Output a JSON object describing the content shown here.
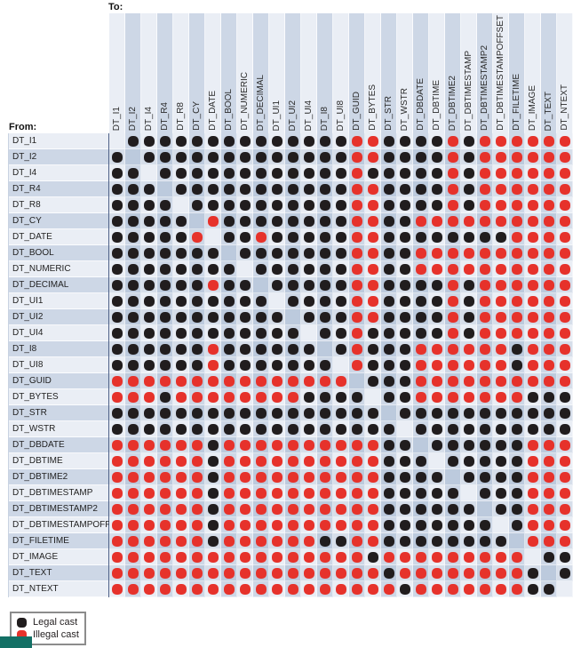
{
  "chart_data": {
    "type": "heatmap",
    "title": "",
    "x_axis_label": "To:",
    "y_axis_label": "From:",
    "columns": [
      "DT_I1",
      "DT_I2",
      "DT_I4",
      "DT_R4",
      "DT_R8",
      "DT_CY",
      "DT_DATE",
      "DT_BOOL",
      "DT_NUMERIC",
      "DT_DECIMAL",
      "DT_UI1",
      "DT_UI2",
      "DT_UI4",
      "DT_I8",
      "DT_UI8",
      "DT_GUID",
      "DT_BYTES",
      "DT_STR",
      "DT_WSTR",
      "DT_DBDATE",
      "DT_DBTIME",
      "DT_DBTIME2",
      "DT_DBTIMESTAMP",
      "DT_DBTIMESTAMP2",
      "DT_DBTIMESTAMPOFFSET",
      "DT_FILETIME",
      "DT_IMAGE",
      "DT_TEXT",
      "DT_NTEXT"
    ],
    "rows": [
      "DT_I1",
      "DT_I2",
      "DT_I4",
      "DT_R4",
      "DT_R8",
      "DT_CY",
      "DT_DATE",
      "DT_BOOL",
      "DT_NUMERIC",
      "DT_DECIMAL",
      "DT_UI1",
      "DT_UI2",
      "DT_UI4",
      "DT_I8",
      "DT_UI8",
      "DT_GUID",
      "DT_BYTES",
      "DT_STR",
      "DT_WSTR",
      "DT_DBDATE",
      "DT_DBTIME",
      "DT_DBTIME2",
      "DT_DBTIMESTAMP",
      "DT_DBTIMESTAMP2",
      "DT_DBTIMESTAMPOFFSET",
      "DT_FILETIME",
      "DT_IMAGE",
      "DT_TEXT",
      "DT_NTEXT"
    ],
    "cell_encoding": {
      "B": "legal cast (black dot)",
      "R": "illegal cast (red dot)",
      "D": "self cast diagonal (no dot)"
    },
    "values": [
      "DBBBBBBBBBBBBBBRRBBBBRBRRRRRR",
      "BDBBBBBBBBBBBBBRRBBBBRBRRRRRR",
      "BBDBBBBBBBBBBBBRBBBBBRBRRRRRR",
      "BBBDBBBBBBBBBBBRRBBBBRBRRRRRR",
      "BBBBDBBBBBBBBBBRRBBBBRBRRRRRR",
      "BBBBBDRBBBBBBBBRRBBRRRRRRRRRR",
      "BBBBBRDBBRBBBBBRRBBBBBBBBRRRR",
      "BBBBBBBDBBBBBBBRRBBRRRRRRRRRR",
      "BBBBBBBBDBBBBBBRRBBRRRRRRRRRR",
      "BBBBBBRBBDBBBBBRRBBBBRBRRRRRR",
      "BBBBBBBBBBDBBBBRRBBBBRBRRRRRR",
      "BBBBBBBBBBBDBBBRRBBBBRBRRRRRR",
      "BBBBBBBBBBBBDBBRBBBBBRBRRRRRR",
      "BBBBBBRBBBBBBDBRBBBRRRRRRBRRR",
      "BBBBBBRBBBBBBBDRBBBRRRRRRBRRR",
      "RRRRRRRRRRRRRRRDBBBRRRRRRRRRR",
      "RRRBRRRRRRRRBBBBDBBRRRRRRRBBB",
      "BBBBBBBBBBBBBBBBBDBBBBBBBBBBB",
      "BBBBBBBBBBBBBBBBBBDBBBBBBBBBB",
      "RRRRRRBRRRRRRRRRRBBDBBBBBBRRR",
      "RRRRRRBRRRRRRRRRRBBBDBBBBBRRR",
      "RRRRRRBRRRRRRRRRRBBBBDBBBBRRR",
      "RRRRRRBRRRRRRRRRRBBBBBDBBBRRR",
      "RRRRRRBRRRRRRRRRRBBBBBBDBBRRR",
      "RRRRRRBRRRRRRRRRRBBBBBBBDBRRR",
      "RRRRRRBRRRRRRBBRRBBBBBBBBDRRR",
      "RRRRRRRRRRRRRRRRBRRRRRRRRRDBB",
      "RRRRRRRRRRRRRRRRRBRRRRRRRRBDB",
      "RRRRRRRRRRRRRRRRRRBRRRRRRRBBD"
    ],
    "legend_items": [
      {
        "label": "Legal cast",
        "color": "#211d1e"
      },
      {
        "label": "Illegal cast",
        "color": "#e6322b"
      }
    ],
    "legend_position": "bottom-left",
    "grid": "plaid alternating light/dark blue stripes on both axes"
  },
  "colors": {
    "col_stripe_light": "#eaeef5",
    "col_stripe_dark": "#cdd7e6",
    "plaid_even_row_light_col": "#d6deea",
    "plaid_even_row_dark_col": "#bccadd",
    "legal_dot": "#211d1e",
    "illegal_dot": "#e6322b",
    "label_separator_line": "#4f6288",
    "teal_artifact": "#137065"
  }
}
